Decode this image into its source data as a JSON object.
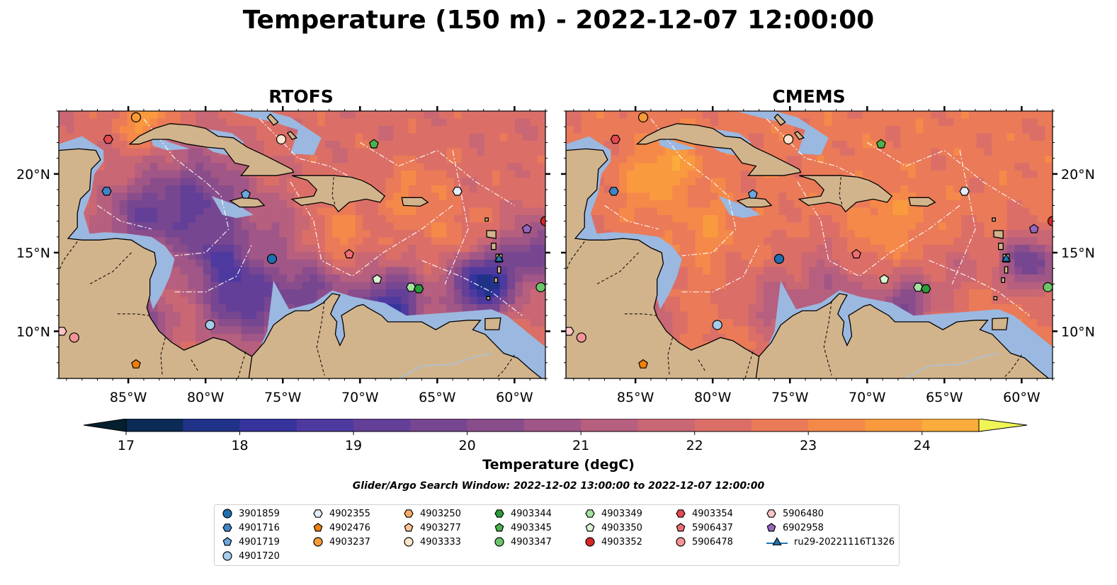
{
  "title": "Temperature (150 m) - 2022-12-07 12:00:00",
  "panels": [
    {
      "title": "RTOFS",
      "id": "rtofs"
    },
    {
      "title": "CMEMS",
      "id": "cmems"
    }
  ],
  "axes": {
    "lon_range": [
      -89.5,
      -58.0
    ],
    "lat_range": [
      7.0,
      24.0
    ],
    "x_ticks": [
      {
        "value": -85,
        "label": "85°W"
      },
      {
        "value": -80,
        "label": "80°W"
      },
      {
        "value": -75,
        "label": "75°W"
      },
      {
        "value": -70,
        "label": "70°W"
      },
      {
        "value": -65,
        "label": "65°W"
      },
      {
        "value": -60,
        "label": "60°W"
      }
    ],
    "y_ticks": [
      {
        "value": 10,
        "label": "10°N"
      },
      {
        "value": 15,
        "label": "15°N"
      },
      {
        "value": 20,
        "label": "20°N"
      }
    ]
  },
  "colors": {
    "land": "#d2b48c",
    "shelf": "#9bb8e0",
    "cmap": [
      "#04202e",
      "#0b2a55",
      "#1f3287",
      "#36339d",
      "#4e3a9f",
      "#633f98",
      "#774691",
      "#8a4d8c",
      "#a05686",
      "#b65f7e",
      "#c96774",
      "#db6f67",
      "#ea7a58",
      "#f5894a",
      "#f99a3f",
      "#fbac3b",
      "#f9c13f",
      "#f3d84a",
      "#f0f556"
    ]
  },
  "colorbar": {
    "label": "Temperature (degC)",
    "min": 17.0,
    "max": 24.5,
    "step": 0.5,
    "ticks": [
      {
        "value": 17,
        "label": "17"
      },
      {
        "value": 18,
        "label": "18"
      },
      {
        "value": 19,
        "label": "19"
      },
      {
        "value": 20,
        "label": "20"
      },
      {
        "value": 21,
        "label": "21"
      },
      {
        "value": 22,
        "label": "22"
      },
      {
        "value": 23,
        "label": "23"
      },
      {
        "value": 24,
        "label": "24"
      }
    ]
  },
  "search_window": "Glider/Argo Search Window: 2022-12-02 13:00:00 to 2022-12-07 12:00:00",
  "legend": [
    {
      "label": "3901859",
      "marker": "circle",
      "color": "#1f6fb4"
    },
    {
      "label": "4901716",
      "marker": "hexagon",
      "color": "#3d85c6"
    },
    {
      "label": "4901719",
      "marker": "pentagon",
      "color": "#6aa8de"
    },
    {
      "label": "4901720",
      "marker": "circle",
      "color": "#a6cbec"
    },
    {
      "label": "4902355",
      "marker": "hexagon",
      "color": "#e3eefa"
    },
    {
      "label": "4902476",
      "marker": "pentagon",
      "color": "#f07f0b"
    },
    {
      "label": "4903237",
      "marker": "circle",
      "color": "#f79a3a"
    },
    {
      "label": "4903250",
      "marker": "hexagon",
      "color": "#f9ad66"
    },
    {
      "label": "4903277",
      "marker": "pentagon",
      "color": "#fcc594"
    },
    {
      "label": "4903333",
      "marker": "circle",
      "color": "#fde4cc"
    },
    {
      "label": "4903344",
      "marker": "hexagon",
      "color": "#2b9c3a"
    },
    {
      "label": "4903345",
      "marker": "pentagon",
      "color": "#4cb04e"
    },
    {
      "label": "4903347",
      "marker": "circle",
      "color": "#6cc46a"
    },
    {
      "label": "4903349",
      "marker": "hexagon",
      "color": "#a5e0a0"
    },
    {
      "label": "4903350",
      "marker": "pentagon",
      "color": "#d8f5cf"
    },
    {
      "label": "4903352",
      "marker": "circle",
      "color": "#d62728"
    },
    {
      "label": "4903354",
      "marker": "hexagon",
      "color": "#e24a4e"
    },
    {
      "label": "5906437",
      "marker": "pentagon",
      "color": "#ee6f72"
    },
    {
      "label": "5906478",
      "marker": "circle",
      "color": "#f59496"
    },
    {
      "label": "5906480",
      "marker": "hexagon",
      "color": "#fbc4c5"
    },
    {
      "label": "6902958",
      "marker": "pentagon",
      "color": "#9467bd"
    },
    {
      "label": "ru29-20221116T1326",
      "marker": "triangle-line",
      "color": "#1f77b4"
    }
  ],
  "platform_locations": [
    {
      "label": "4903237",
      "lon": -84.5,
      "lat": 23.6
    },
    {
      "label": "4903354",
      "lon": -86.3,
      "lat": 22.2
    },
    {
      "label": "4901716",
      "lon": -86.4,
      "lat": 18.9
    },
    {
      "label": "4903333",
      "lon": -75.1,
      "lat": 22.2
    },
    {
      "label": "4903345",
      "lon": -69.1,
      "lat": 21.9
    },
    {
      "label": "4901719",
      "lon": -77.4,
      "lat": 18.7
    },
    {
      "label": "4902355",
      "lon": -63.7,
      "lat": 18.9
    },
    {
      "label": "5906437",
      "lon": -70.7,
      "lat": 14.9
    },
    {
      "label": "3901859",
      "lon": -75.7,
      "lat": 14.6
    },
    {
      "label": "4903350",
      "lon": -68.9,
      "lat": 13.3
    },
    {
      "label": "4903349",
      "lon": -66.7,
      "lat": 12.8
    },
    {
      "label": "4903344",
      "lon": -66.2,
      "lat": 12.7
    },
    {
      "label": "6902958",
      "lon": -59.2,
      "lat": 16.5
    },
    {
      "label": "4903352",
      "lon": -58.0,
      "lat": 17.0
    },
    {
      "label": "4903347",
      "lon": -58.3,
      "lat": 12.8
    },
    {
      "label": "ru29-20221116T1326",
      "lon": -61.0,
      "lat": 14.6
    },
    {
      "label": "4901720",
      "lon": -79.7,
      "lat": 10.4
    },
    {
      "label": "5906480",
      "lon": -89.3,
      "lat": 10.0
    },
    {
      "label": "5906478",
      "lon": -88.5,
      "lat": 9.6
    },
    {
      "label": "4902476",
      "lon": -84.5,
      "lat": 7.9
    }
  ]
}
